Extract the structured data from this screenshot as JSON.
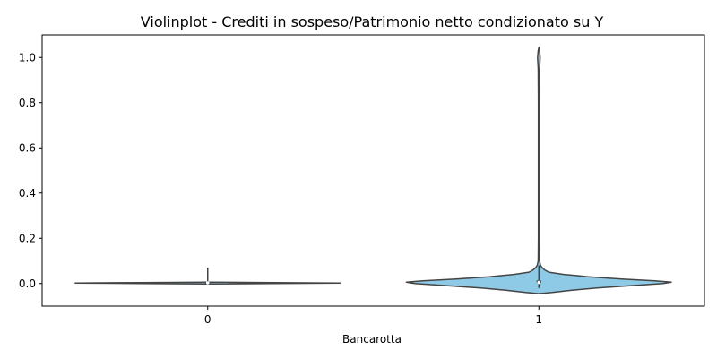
{
  "chart_data": {
    "type": "violin",
    "title": "Violinplot - Crediti in sospeso/Patrimonio netto condizionato su Y",
    "xlabel": "Bancarotta",
    "ylabel": "",
    "categories": [
      "0",
      "1"
    ],
    "ylim": [
      -0.1,
      1.1
    ],
    "yticks": [
      0.0,
      0.2,
      0.4,
      0.6,
      0.8,
      1.0
    ],
    "ytick_labels": [
      "0.0",
      "0.2",
      "0.4",
      "0.6",
      "0.8",
      "1.0"
    ],
    "fill_color": "#8ecae6",
    "edge_color": "#444444",
    "violins": [
      {
        "category": "0",
        "profile": [
          {
            "y": -0.002,
            "w": 0.0
          },
          {
            "y": 0.0,
            "w": 0.4
          },
          {
            "y": 0.002,
            "w": 0.8
          },
          {
            "y": 0.004,
            "w": 0.4
          },
          {
            "y": 0.006,
            "w": 0.0
          }
        ],
        "box": {
          "q1": 0.002,
          "median": 0.003,
          "q3": 0.005,
          "whisker_low": 0.0,
          "whisker_high": 0.07
        }
      },
      {
        "category": "1",
        "profile": [
          {
            "y": -0.045,
            "w": 0.0
          },
          {
            "y": -0.04,
            "w": 0.08
          },
          {
            "y": -0.03,
            "w": 0.2
          },
          {
            "y": -0.02,
            "w": 0.35
          },
          {
            "y": -0.01,
            "w": 0.55
          },
          {
            "y": 0.0,
            "w": 0.75
          },
          {
            "y": 0.006,
            "w": 0.8
          },
          {
            "y": 0.012,
            "w": 0.7
          },
          {
            "y": 0.02,
            "w": 0.5
          },
          {
            "y": 0.03,
            "w": 0.3
          },
          {
            "y": 0.04,
            "w": 0.15
          },
          {
            "y": 0.05,
            "w": 0.06
          },
          {
            "y": 0.06,
            "w": 0.035
          },
          {
            "y": 0.07,
            "w": 0.02
          },
          {
            "y": 0.08,
            "w": 0.01
          },
          {
            "y": 0.1,
            "w": 0.004
          },
          {
            "y": 0.2,
            "w": 0.003
          },
          {
            "y": 0.4,
            "w": 0.003
          },
          {
            "y": 0.6,
            "w": 0.003
          },
          {
            "y": 0.8,
            "w": 0.003
          },
          {
            "y": 0.95,
            "w": 0.004
          },
          {
            "y": 1.0,
            "w": 0.008
          },
          {
            "y": 1.03,
            "w": 0.004
          },
          {
            "y": 1.045,
            "w": 0.0
          }
        ],
        "box": {
          "q1": 0.002,
          "median": 0.005,
          "q3": 0.01,
          "whisker_low": -0.02,
          "whisker_high": 0.08
        }
      }
    ]
  }
}
